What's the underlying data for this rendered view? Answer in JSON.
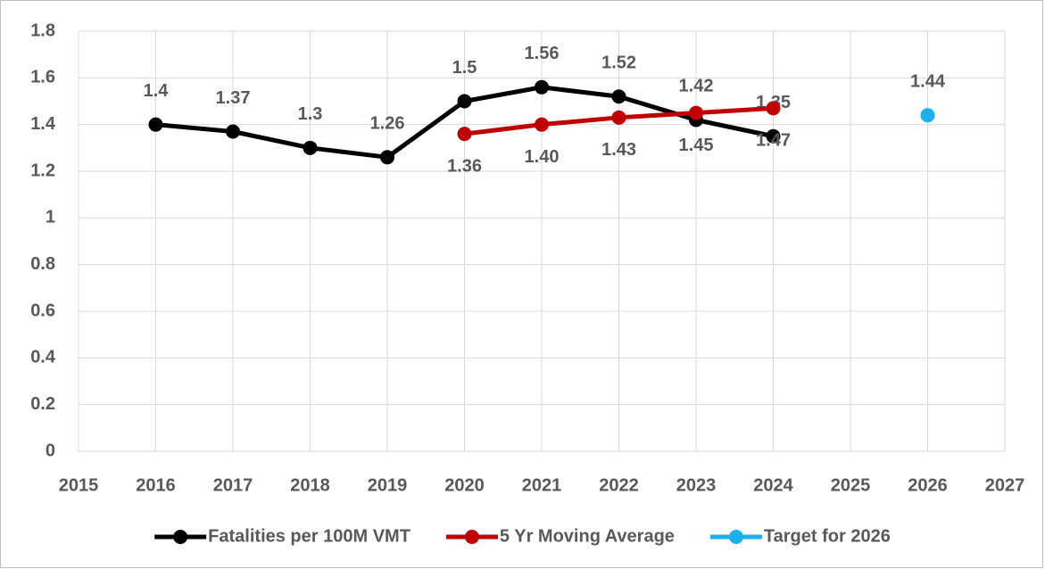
{
  "chart_data": {
    "type": "line",
    "x": [
      2016,
      2017,
      2018,
      2019,
      2020,
      2021,
      2022,
      2023,
      2024
    ],
    "series": [
      {
        "name": "Fatalities per 100M VMT",
        "color": "#000000",
        "x": [
          2016,
          2017,
          2018,
          2019,
          2020,
          2021,
          2022,
          2023,
          2024
        ],
        "values": [
          1.4,
          1.37,
          1.3,
          1.26,
          1.5,
          1.56,
          1.52,
          1.42,
          1.35
        ]
      },
      {
        "name": "5 Yr Moving Average",
        "color": "#c00000",
        "x": [
          2020,
          2021,
          2022,
          2023,
          2024
        ],
        "values": [
          1.36,
          1.4,
          1.43,
          1.45,
          1.47
        ],
        "value_labels": [
          "1.36",
          "1.40",
          "1.43",
          "1.45",
          "1.47"
        ]
      },
      {
        "name": "Target for 2026",
        "color": "#1ab0ee",
        "x": [
          2026
        ],
        "values": [
          1.44
        ]
      }
    ],
    "xlim": [
      2015,
      2027
    ],
    "xticks": [
      2015,
      2016,
      2017,
      2018,
      2019,
      2020,
      2021,
      2022,
      2023,
      2024,
      2025,
      2026,
      2027
    ],
    "ylim": [
      0,
      1.8
    ],
    "yticks": [
      0,
      0.2,
      0.4,
      0.6,
      0.8,
      1,
      1.2,
      1.4,
      1.6,
      1.8
    ],
    "grid": true,
    "legend": "bottom"
  }
}
